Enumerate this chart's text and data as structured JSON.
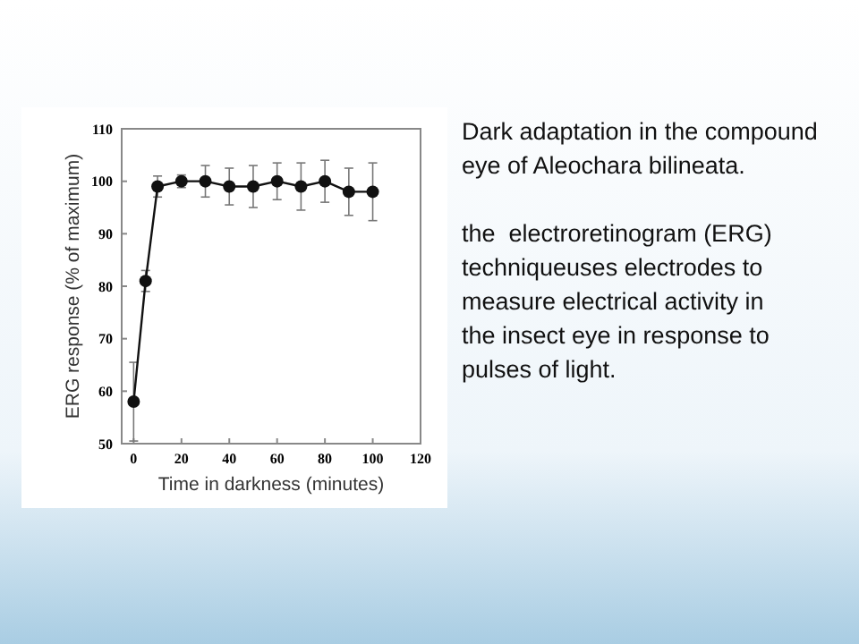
{
  "chart_data": {
    "type": "line",
    "title": "Dark adaptation in the compound eye of Aleochara bilineata.",
    "annotations": [
      "the  electroretinogram (ERG) techniqueuses electrodes to measure electrical activity in the insect eye in response to pulses of light."
    ],
    "xlabel": "Time in darkness (minutes)",
    "ylabel": "ERG response (% of maximum)",
    "x": [
      0,
      5,
      10,
      20,
      30,
      40,
      50,
      60,
      70,
      80,
      90,
      100
    ],
    "series": [
      {
        "color": "#111111",
        "values": [
          58,
          81,
          99,
          100,
          100,
          99,
          99,
          100,
          99,
          100,
          98,
          98
        ],
        "errors": [
          7.5,
          2,
          2,
          1.2,
          3,
          3.5,
          4,
          3.5,
          4.5,
          4,
          4.5,
          5.5
        ]
      }
    ],
    "xlim": [
      -5,
      120
    ],
    "xticks": [
      0,
      20,
      40,
      60,
      80,
      100,
      120
    ],
    "ylim": [
      50,
      110
    ],
    "yticks": [
      50,
      60,
      70,
      80,
      90,
      100,
      110
    ],
    "marker": "circle",
    "line_style": "solid",
    "grid": false
  }
}
